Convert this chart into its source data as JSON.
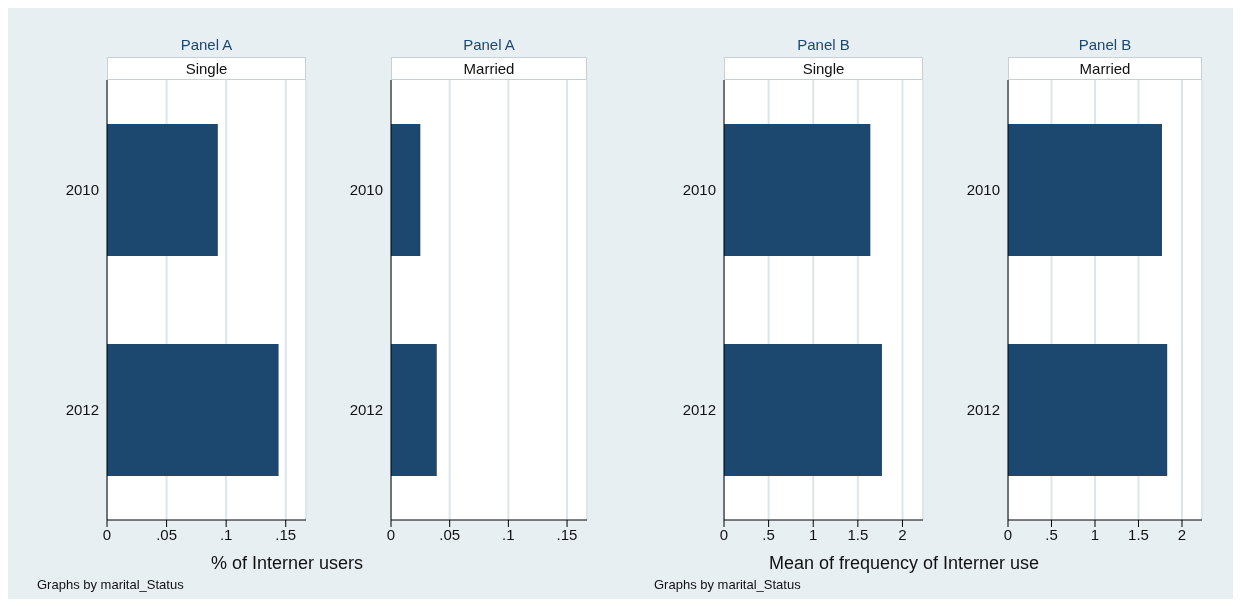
{
  "chart_data": [
    {
      "type": "bar",
      "orientation": "horizontal",
      "title": "Panel A",
      "subtitle": "Single",
      "xlabel": "% of Interner users",
      "annotations": [
        "Graphs by marital_Status"
      ],
      "categories": [
        "2010",
        "2012"
      ],
      "values": [
        0.093,
        0.144
      ],
      "color": "#1c4870",
      "xlim": [
        0,
        0.167
      ],
      "xticks": [
        0,
        {
          "value": 0.05,
          "label": ".05"
        },
        {
          "value": 0.1,
          "label": ".1"
        },
        {
          "value": 0.15,
          "label": ".15"
        }
      ],
      "grid": "x"
    },
    {
      "type": "bar",
      "orientation": "horizontal",
      "title": "Panel A",
      "subtitle": "Married",
      "categories": [
        "2010",
        "2012"
      ],
      "values": [
        0.025,
        0.039
      ],
      "color": "#1c4870",
      "xlim": [
        0,
        0.167
      ],
      "xticks": [
        0,
        {
          "value": 0.05,
          "label": ".05"
        },
        {
          "value": 0.1,
          "label": ".1"
        },
        {
          "value": 0.15,
          "label": ".15"
        }
      ],
      "grid": "x"
    },
    {
      "type": "bar",
      "orientation": "horizontal",
      "title": "Panel B",
      "subtitle": "Single",
      "xlabel": "Mean of frequency of Interner use",
      "annotations": [
        "Graphs by marital_Status"
      ],
      "categories": [
        "2010",
        "2012"
      ],
      "values": [
        1.64,
        1.77
      ],
      "color": "#1c4870",
      "xlim": [
        0,
        2.23
      ],
      "xticks": [
        0,
        {
          "value": 0.5,
          "label": ".5"
        },
        1,
        1.5,
        2
      ],
      "grid": "x"
    },
    {
      "type": "bar",
      "orientation": "horizontal",
      "title": "Panel B",
      "subtitle": "Married",
      "categories": [
        "2010",
        "2012"
      ],
      "values": [
        1.77,
        1.83
      ],
      "color": "#1c4870",
      "xlim": [
        0,
        2.23
      ],
      "xticks": [
        0,
        {
          "value": 0.5,
          "label": ".5"
        },
        1,
        1.5,
        2
      ],
      "grid": "x"
    }
  ]
}
